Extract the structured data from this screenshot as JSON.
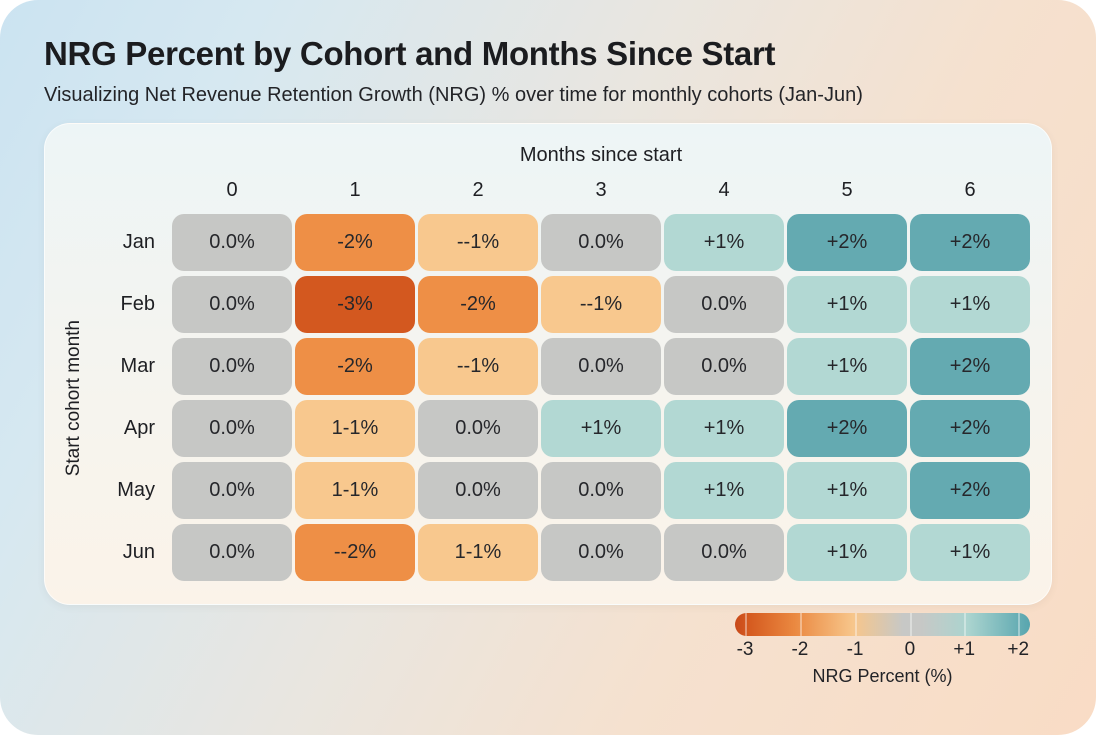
{
  "header": {
    "title": "NRG Percent by Cohort and Months Since Start",
    "subtitle": "Visualizing Net Revenue Retention Growth (NRG) % over time for monthly cohorts (Jan-Jun)"
  },
  "chart_data": {
    "type": "heatmap",
    "title": "NRG Percent by Cohort and Months Since Start",
    "subtitle": "Visualizing Net Revenue Retention Growth (NRG) % over time for monthly cohorts (Jan-Jun)",
    "xlabel": "Months since start",
    "ylabel": "Start cohort month",
    "x_categories": [
      "0",
      "1",
      "2",
      "3",
      "4",
      "5",
      "6"
    ],
    "y_categories": [
      "Jan",
      "Feb",
      "Mar",
      "Apr",
      "May",
      "Jun"
    ],
    "values": [
      [
        0,
        -2,
        -1,
        0,
        1,
        2,
        2
      ],
      [
        0,
        -3,
        -2,
        -1,
        0,
        1,
        1
      ],
      [
        0,
        -2,
        -1,
        0,
        0,
        1,
        2
      ],
      [
        0,
        -1,
        0,
        1,
        1,
        2,
        2
      ],
      [
        0,
        -1,
        0,
        0,
        1,
        1,
        2
      ],
      [
        0,
        -2,
        -1,
        0,
        0,
        1,
        1
      ]
    ],
    "cell_labels": [
      [
        "0.0%",
        "-2%",
        "--1%",
        "0.0%",
        "+1%",
        "+2%",
        "+2%"
      ],
      [
        "0.0%",
        "-3%",
        "-2%",
        "--1%",
        "0.0%",
        "+1%",
        "+1%"
      ],
      [
        "0.0%",
        "-2%",
        "--1%",
        "0.0%",
        "0.0%",
        "+1%",
        "+2%"
      ],
      [
        "0.0%",
        "1-1%",
        "0.0%",
        "+1%",
        "+1%",
        "+2%",
        "+2%"
      ],
      [
        "0.0%",
        "1-1%",
        "0.0%",
        "0.0%",
        "+1%",
        "+1%",
        "+2%"
      ],
      [
        "0.0%",
        "--2%",
        "1-1%",
        "0.0%",
        "0.0%",
        "+1%",
        "+1%"
      ]
    ],
    "colorbar": {
      "label": "NRG Percent (%)",
      "ticks": [
        -3,
        -2,
        -1,
        0,
        1,
        2
      ],
      "range": [
        -3,
        2
      ],
      "position": "bottom-right"
    },
    "grid": "off"
  },
  "value_colors": {
    "-3": "#d3581f",
    "-2": "#ee8f46",
    "-1": "#f8c88e",
    "0": "#c6c7c5",
    "1": "#b2d8d3",
    "2": "#64aab1"
  },
  "legend": {
    "caption": "NRG Percent (%)",
    "tick_labels": [
      "-3",
      "-2",
      "-1",
      "0",
      "+1",
      "+2"
    ],
    "tick_positions": [
      3.4,
      22,
      40.7,
      59.3,
      77.7,
      96
    ],
    "gradient_stops": [
      "#c8491a",
      "#d4581e",
      "#ea8840",
      "#f7c68b",
      "#c7c8c6",
      "#abd4cf",
      "#57a5ae"
    ]
  }
}
